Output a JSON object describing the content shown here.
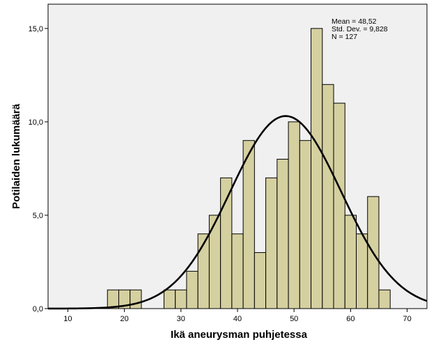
{
  "chart_data": {
    "type": "histogram",
    "xlabel": "Ikä aneurysman puhjetessa",
    "ylabel": "Potilaiden lukumäärä",
    "xlim": [
      6.5,
      73.5
    ],
    "ylim": [
      0,
      16.3
    ],
    "x_ticks": [
      10,
      20,
      30,
      40,
      50,
      60,
      70
    ],
    "y_ticks": [
      {
        "value": 0,
        "label": "0,0"
      },
      {
        "value": 5,
        "label": "5,0"
      },
      {
        "value": 10,
        "label": "10,0"
      },
      {
        "value": 15,
        "label": "15,0"
      }
    ],
    "bin_width": 2,
    "bins": [
      {
        "start": 17,
        "count": 1
      },
      {
        "start": 19,
        "count": 1
      },
      {
        "start": 21,
        "count": 1
      },
      {
        "start": 27,
        "count": 1
      },
      {
        "start": 29,
        "count": 1
      },
      {
        "start": 31,
        "count": 2
      },
      {
        "start": 33,
        "count": 4
      },
      {
        "start": 35,
        "count": 5
      },
      {
        "start": 37,
        "count": 7
      },
      {
        "start": 39,
        "count": 4
      },
      {
        "start": 41,
        "count": 9
      },
      {
        "start": 43,
        "count": 3
      },
      {
        "start": 45,
        "count": 7
      },
      {
        "start": 47,
        "count": 8
      },
      {
        "start": 49,
        "count": 10
      },
      {
        "start": 51,
        "count": 9
      },
      {
        "start": 53,
        "count": 15
      },
      {
        "start": 55,
        "count": 12
      },
      {
        "start": 57,
        "count": 11
      },
      {
        "start": 59,
        "count": 5
      },
      {
        "start": 61,
        "count": 4
      },
      {
        "start": 63,
        "count": 6
      },
      {
        "start": 65,
        "count": 1
      }
    ],
    "normal_curve": {
      "mean": 48.52,
      "sd": 9.828,
      "n": 127
    },
    "stats_labels": [
      "Mean = 48,52",
      "Std. Dev. = 9,828",
      "N = 127"
    ],
    "colors": {
      "bar_fill": "#d5d0a0",
      "bar_stroke": "#000000",
      "plot_bg": "#f0f0f0",
      "curve": "#000000"
    }
  }
}
